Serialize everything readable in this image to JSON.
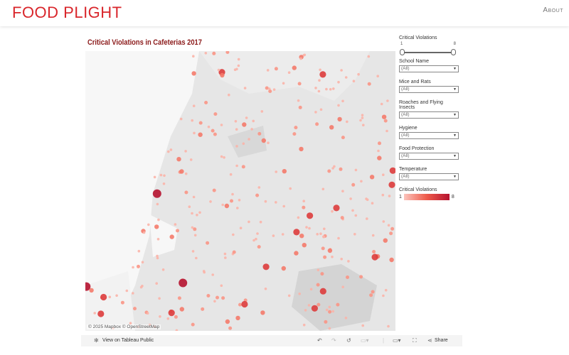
{
  "header": {
    "logo": "FOOD PLIGHT",
    "about": "About"
  },
  "viz": {
    "title": "Critical Violations in Cafeterias 2017",
    "attribution": "© 2025 Mapbox  © OpenStreetMap"
  },
  "filters": {
    "slider": {
      "label": "Critical Violations",
      "min": "1",
      "max": "8",
      "range": [
        1,
        8
      ]
    },
    "dropdowns": [
      {
        "label": "School Name",
        "value": "(All)"
      },
      {
        "label": "Mice and Rats",
        "value": "(All)"
      },
      {
        "label": "Roaches and Flying Insects",
        "value": "(All)"
      },
      {
        "label": "Hygiene",
        "value": "(All)"
      },
      {
        "label": "Food Protection",
        "value": "(All)"
      },
      {
        "label": "Temperature",
        "value": "(All)"
      }
    ],
    "legend": {
      "label": "Critical Violations",
      "min": "1",
      "max": "8",
      "colors": [
        "#fbc4bc",
        "#ee5a4a",
        "#b5122f"
      ]
    }
  },
  "toolbar": {
    "view_label": "View on Tableau Public",
    "share_label": "Share"
  }
}
